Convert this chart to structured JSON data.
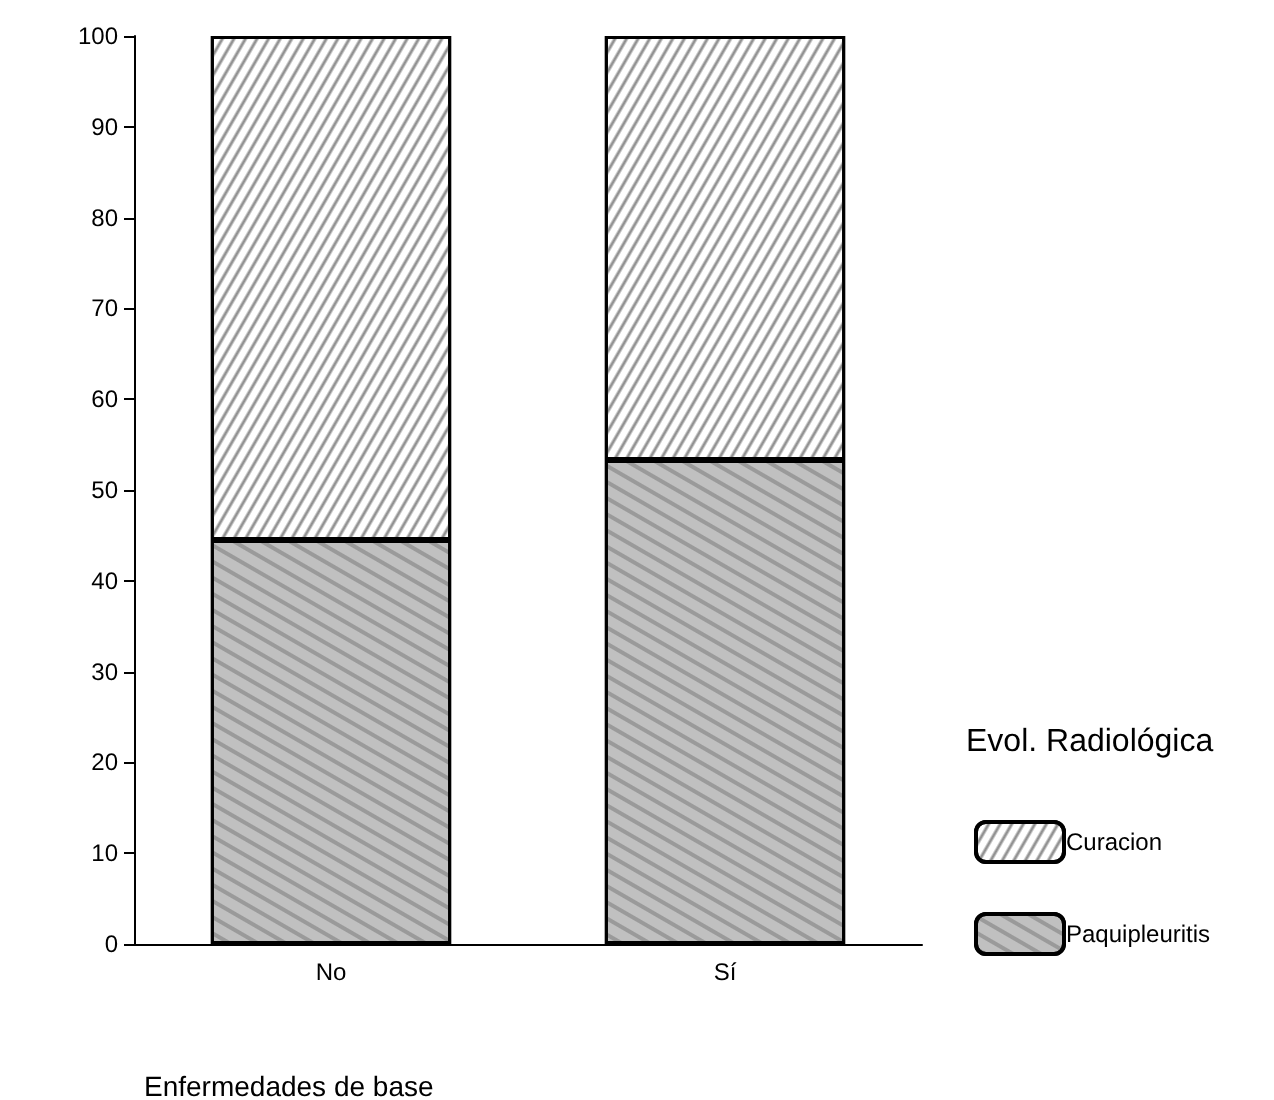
{
  "chart_data": {
    "type": "bar",
    "stacked": true,
    "xlabel": "Enfermedades de base",
    "legend_title": "Evol. Radiológica",
    "categories": [
      "No",
      "Sí"
    ],
    "series": [
      {
        "name": "Paquipleuritis",
        "color": "#c0c0c0",
        "values": [
          44.5,
          53.3
        ]
      },
      {
        "name": "Curacion",
        "color": "#ffffff",
        "values": [
          55.5,
          46.7
        ]
      }
    ],
    "ylim": [
      0,
      100
    ],
    "yticks": [
      0,
      10,
      20,
      30,
      40,
      50,
      60,
      70,
      80,
      90,
      100
    ],
    "grid": false,
    "legend": "right"
  }
}
